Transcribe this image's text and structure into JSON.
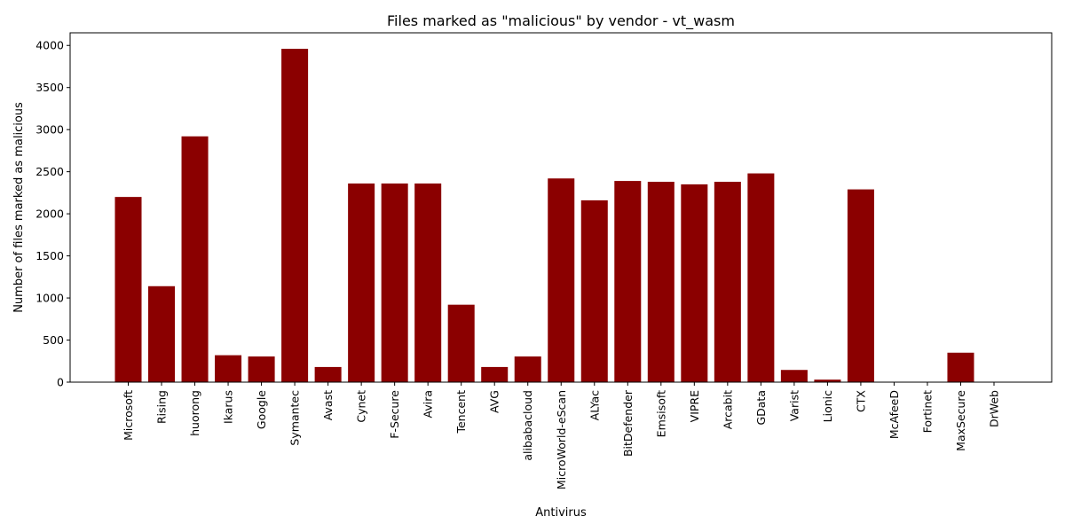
{
  "chart_data": {
    "type": "bar",
    "title": "Files marked as \"malicious\" by vendor - vt_wasm",
    "xlabel": "Antivirus",
    "ylabel": "Number of files marked as malicious",
    "ylim": [
      0,
      4150
    ],
    "yticks": [
      0,
      500,
      1000,
      1500,
      2000,
      2500,
      3000,
      3500,
      4000
    ],
    "bar_color": "#8b0000",
    "grid": false,
    "categories": [
      "Microsoft",
      "Rising",
      "huorong",
      "Ikarus",
      "Google",
      "Symantec",
      "Avast",
      "Cynet",
      "F-Secure",
      "Avira",
      "Tencent",
      "AVG",
      "alibabacloud",
      "MicroWorld-eScan",
      "ALYac",
      "BitDefender",
      "Emsisoft",
      "VIPRE",
      "Arcabit",
      "GData",
      "Varist",
      "Lionic",
      "CTX",
      "McAfeeD",
      "Fortinet",
      "MaxSecure",
      "DrWeb"
    ],
    "values": [
      2200,
      1140,
      2920,
      320,
      305,
      3960,
      180,
      2360,
      2360,
      2360,
      920,
      180,
      305,
      2420,
      2160,
      2390,
      2380,
      2350,
      2380,
      2480,
      145,
      30,
      2290,
      0,
      0,
      350,
      0
    ]
  }
}
